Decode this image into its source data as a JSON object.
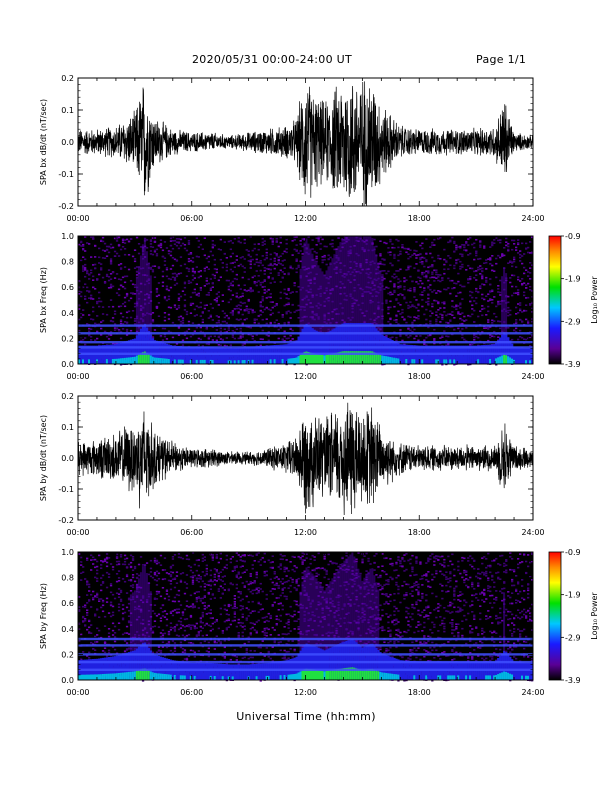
{
  "header": {
    "title": "2020/05/31  00:00-24:00 UT",
    "page_label": "Page 1/1"
  },
  "x_axis_title": "Universal Time (hh:mm)",
  "colorbar_label": "Log₁₀ Power",
  "chart_data": [
    {
      "type": "line",
      "title": "",
      "xlabel": "",
      "ylabel": "SPA bx dB/dt (nT/sec)",
      "x_ticks": [
        "00:00",
        "06:00",
        "12:00",
        "18:00",
        "24:00"
      ],
      "xlim": [
        "00:00",
        "24:00"
      ],
      "ylim": [
        -0.2,
        0.2
      ],
      "y_ticks": [
        "-0.2",
        "-0.1",
        "0.0",
        "0.1",
        "0.2"
      ],
      "series": [
        {
          "x": [
            "00:00",
            "01:00",
            "02:00",
            "03:00",
            "03:30",
            "04:00",
            "05:00",
            "06:00",
            "07:00",
            "08:00",
            "09:00",
            "10:00",
            "11:00",
            "11:30",
            "12:00",
            "12:30",
            "13:00",
            "14:00",
            "14:30",
            "15:00",
            "15:30",
            "16:00",
            "17:00",
            "18:00",
            "19:00",
            "20:00",
            "21:00",
            "22:00",
            "22:30",
            "23:00",
            "24:00"
          ],
          "envelope": [
            0.04,
            0.04,
            0.05,
            0.09,
            0.2,
            0.08,
            0.04,
            0.03,
            0.03,
            0.02,
            0.03,
            0.04,
            0.05,
            0.07,
            0.2,
            0.15,
            0.12,
            0.2,
            0.2,
            0.2,
            0.2,
            0.12,
            0.05,
            0.04,
            0.04,
            0.04,
            0.04,
            0.05,
            0.14,
            0.03,
            0.02
          ]
        }
      ]
    },
    {
      "type": "heatmap",
      "title": "",
      "xlabel": "",
      "ylabel": "SPA bx Freq (Hz)",
      "x_ticks": [
        "00:00",
        "06:00",
        "12:00",
        "18:00",
        "24:00"
      ],
      "xlim": [
        "00:00",
        "24:00"
      ],
      "ylim": [
        0.0,
        1.0
      ],
      "y_ticks": [
        "0.0",
        "0.2",
        "0.4",
        "0.6",
        "0.8",
        "1.0"
      ],
      "colorbar": {
        "label": "Log₁₀ Power",
        "range": [
          -3.9,
          -0.9
        ],
        "ticks": [
          "-0.9",
          "-1.9",
          "-2.9",
          "-3.9"
        ]
      },
      "bands_hz": [
        0.3,
        0.24,
        0.17,
        0.13,
        0.08
      ]
    },
    {
      "type": "line",
      "title": "",
      "xlabel": "",
      "ylabel": "SPA by dB/dt (nT/sec)",
      "x_ticks": [
        "00:00",
        "06:00",
        "12:00",
        "18:00",
        "24:00"
      ],
      "xlim": [
        "00:00",
        "24:00"
      ],
      "ylim": [
        -0.2,
        0.2
      ],
      "y_ticks": [
        "-0.2",
        "-0.1",
        "0.0",
        "0.1",
        "0.2"
      ],
      "series": [
        {
          "x": [
            "00:00",
            "01:00",
            "02:00",
            "03:00",
            "03:30",
            "04:00",
            "05:00",
            "06:00",
            "07:00",
            "08:00",
            "09:00",
            "10:00",
            "11:00",
            "11:30",
            "12:00",
            "12:30",
            "13:00",
            "14:00",
            "14:30",
            "15:00",
            "15:30",
            "16:00",
            "17:00",
            "18:00",
            "19:00",
            "20:00",
            "21:00",
            "22:00",
            "22:30",
            "23:00",
            "24:00"
          ],
          "envelope": [
            0.05,
            0.06,
            0.08,
            0.12,
            0.18,
            0.09,
            0.05,
            0.03,
            0.03,
            0.02,
            0.02,
            0.03,
            0.05,
            0.07,
            0.17,
            0.15,
            0.12,
            0.18,
            0.2,
            0.14,
            0.17,
            0.1,
            0.05,
            0.04,
            0.04,
            0.04,
            0.04,
            0.04,
            0.12,
            0.04,
            0.03
          ]
        }
      ]
    },
    {
      "type": "heatmap",
      "title": "",
      "xlabel": "",
      "ylabel": "SPA by Freq (Hz)",
      "x_ticks": [
        "00:00",
        "06:00",
        "12:00",
        "18:00",
        "24:00"
      ],
      "xlim": [
        "00:00",
        "24:00"
      ],
      "ylim": [
        0.0,
        1.0
      ],
      "y_ticks": [
        "0.0",
        "0.2",
        "0.4",
        "0.6",
        "0.8",
        "1.0"
      ],
      "colorbar": {
        "label": "Log₁₀ Power",
        "range": [
          -3.9,
          -0.9
        ],
        "ticks": [
          "-0.9",
          "-1.9",
          "-2.9",
          "-3.9"
        ]
      },
      "bands_hz": [
        0.32,
        0.27,
        0.2,
        0.14,
        0.08
      ]
    }
  ]
}
